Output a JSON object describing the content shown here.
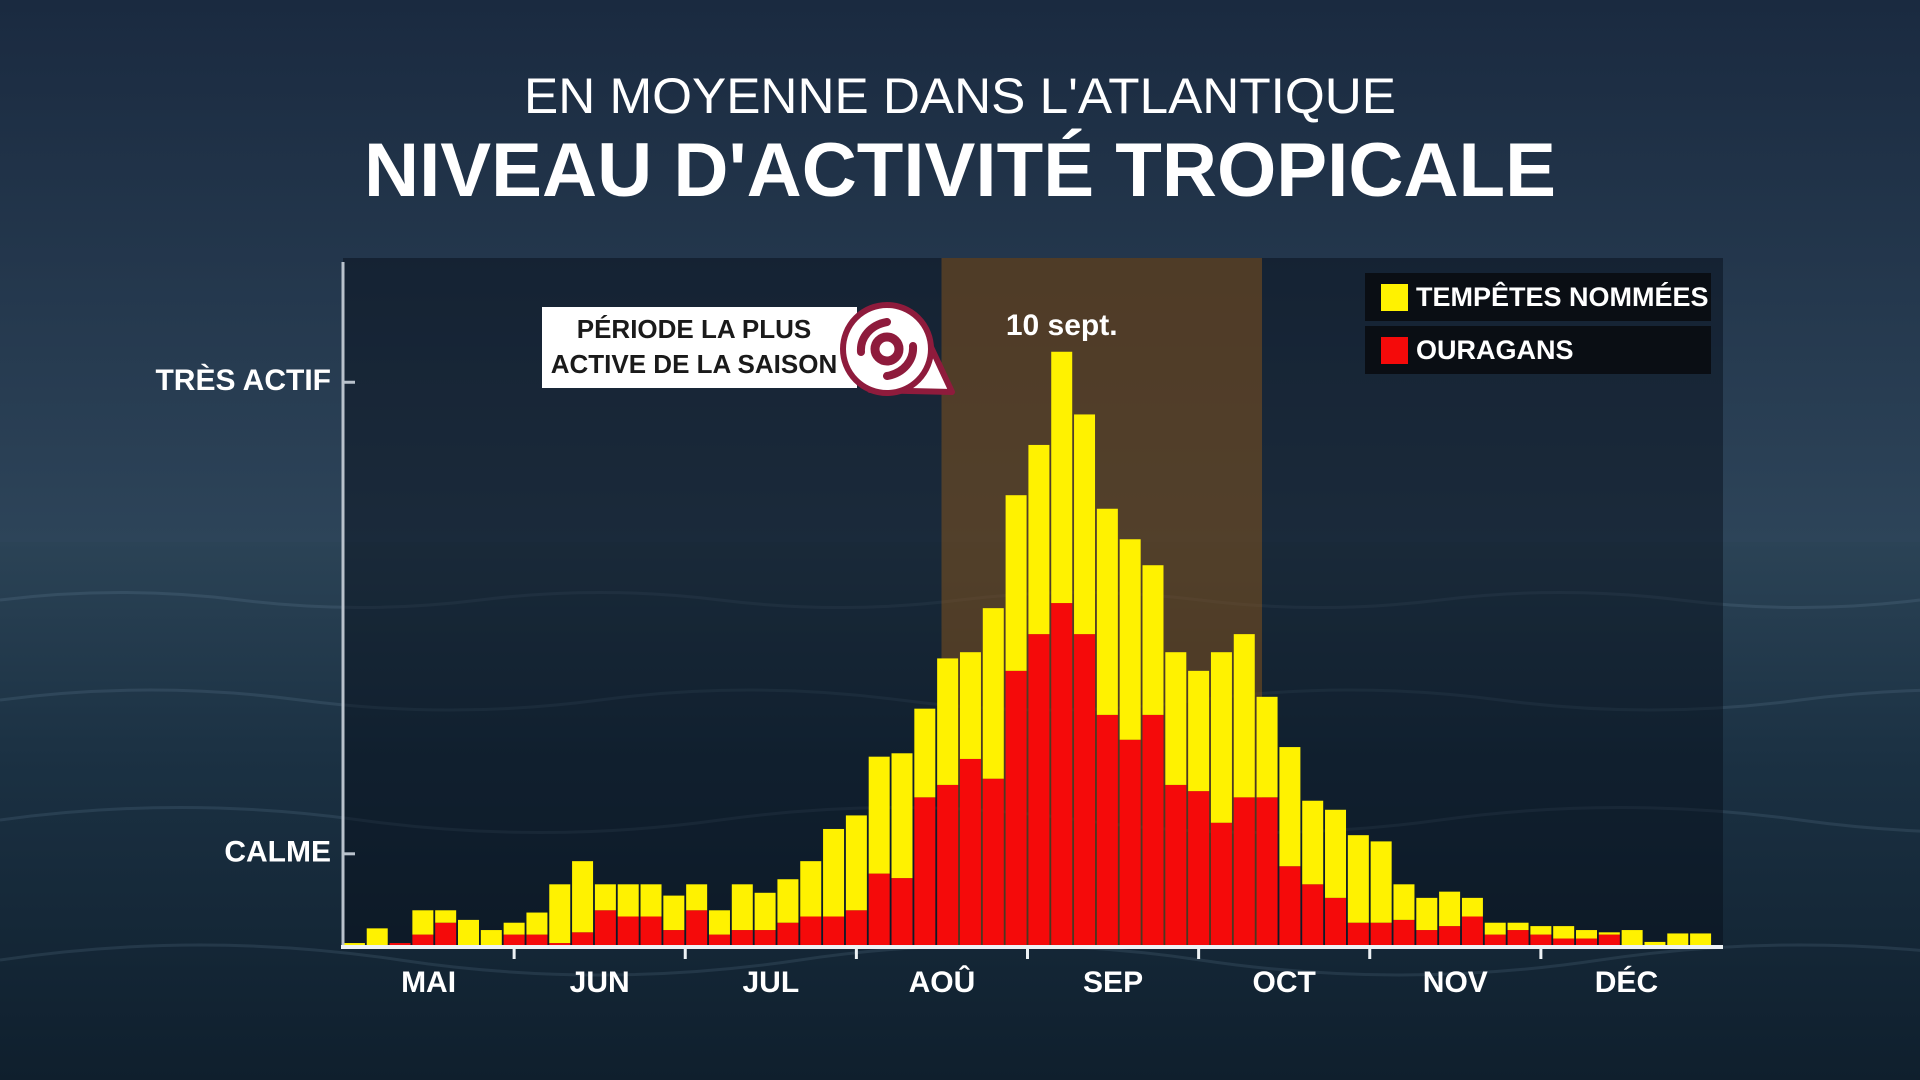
{
  "chart_data": {
    "type": "stacked_bar",
    "subtitle": "EN MOYENNE DANS L'ATLANTIQUE",
    "title": "NIVEAU D'ACTIVITÉ TROPICALE",
    "annotations": {
      "peak": "10 sept.",
      "callout": [
        "PÉRIODE LA PLUS",
        "ACTIVE DE LA SAISON"
      ]
    },
    "categories": [
      null,
      null,
      null,
      null,
      null,
      null,
      null,
      null,
      null,
      null,
      null,
      null,
      null,
      null,
      null,
      null,
      null,
      null,
      null,
      null,
      null,
      null,
      null,
      null,
      null,
      null,
      null,
      null,
      null,
      null,
      null,
      null,
      null,
      null,
      null,
      null,
      null,
      null,
      null,
      null,
      null,
      null,
      null,
      null,
      null,
      null,
      null,
      null,
      null,
      null,
      null,
      null,
      null,
      null,
      null,
      null,
      null,
      null,
      null,
      null
    ],
    "month_labels": [
      "MAI",
      "JUN",
      "JUL",
      "AOÛ",
      "SEP",
      "OCT",
      "NOV",
      "DÉC"
    ],
    "series": [
      {
        "name": "TEMPÊTES NOMMÉES",
        "color": "#fff200",
        "values": [
          0.4,
          3.3,
          0,
          4.3,
          2.2,
          4.8,
          3.0,
          2.1,
          3.9,
          10.4,
          12.6,
          4.6,
          5.7,
          5.7,
          6.1,
          4.6,
          4.3,
          8.1,
          6.6,
          7.7,
          9.8,
          15.5,
          16.8,
          20.7,
          22.1,
          15.7,
          22.4,
          18.9,
          30.2,
          31.1,
          33.5,
          44.5,
          38.9,
          36.5,
          35.5,
          26.5,
          23.5,
          21.3,
          30.2,
          28.9,
          17.8,
          21.1,
          14.8,
          15.6,
          15.5,
          14.4,
          6.3,
          5.7,
          6.1,
          3.3,
          2.1,
          1.3,
          1.5,
          2.2,
          1.5,
          0.4,
          3.0,
          0.9,
          2.4,
          2.4
        ]
      },
      {
        "name": "OURAGANS",
        "color": "#f50a0a",
        "values": [
          0.3,
          0,
          0.7,
          2.2,
          4.3,
          0,
          0,
          2.2,
          2.2,
          0.7,
          2.6,
          6.5,
          5.4,
          5.4,
          3.0,
          6.5,
          2.2,
          3.0,
          3.0,
          4.3,
          5.4,
          5.4,
          6.5,
          13.0,
          12.2,
          26.5,
          28.7,
          33.3,
          29.8,
          48.9,
          55.4,
          60.9,
          55.4,
          41.1,
          36.7,
          41.1,
          28.7,
          27.6,
          22.0,
          26.5,
          26.5,
          14.3,
          11.1,
          8.7,
          4.3,
          4.3,
          4.8,
          3.0,
          3.7,
          5.4,
          2.2,
          3.0,
          2.2,
          1.5,
          1.5,
          2.2,
          0,
          0,
          0,
          0
        ]
      }
    ],
    "ylim": [
      0,
      122
    ],
    "yticks": [
      {
        "value": 16.5,
        "label": "CALME"
      },
      {
        "value": 100,
        "label": "TRÈS ACTIF"
      }
    ],
    "legend": "top-right"
  }
}
